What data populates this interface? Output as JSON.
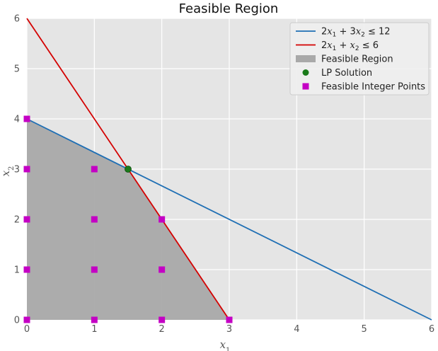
{
  "chart_data": {
    "type": "line",
    "title": "Feasible Region",
    "xlabel": "x",
    "xlabel_sub": "1",
    "ylabel": "x",
    "ylabel_sub": "2",
    "xlim": [
      0,
      6
    ],
    "ylim": [
      0,
      6
    ],
    "xticks": [
      0,
      1,
      2,
      3,
      4,
      5,
      6
    ],
    "yticks": [
      0,
      1,
      2,
      3,
      4,
      5,
      6
    ],
    "grid": true,
    "legend_position": "top-right",
    "series": [
      {
        "name": "2x1 + 3x2 ≤ 12",
        "legend_parts": [
          "2",
          "x",
          "1",
          " + 3",
          "x",
          "2",
          " ≤ 12"
        ],
        "type": "line",
        "color": "#1f6fb4",
        "x": [
          0,
          6
        ],
        "y": [
          4,
          0
        ]
      },
      {
        "name": "2x1 + x2 ≤ 6",
        "legend_parts": [
          "2",
          "x",
          "1",
          " + ",
          "x",
          "2",
          " ≤ 6"
        ],
        "type": "line",
        "color": "#d40000",
        "x": [
          0,
          3
        ],
        "y": [
          6,
          0
        ]
      },
      {
        "name": "Feasible Region",
        "type": "area",
        "color": "#a9a9a9",
        "polygon": [
          [
            0,
            0
          ],
          [
            3,
            0
          ],
          [
            1.5,
            3
          ],
          [
            0,
            4
          ]
        ]
      },
      {
        "name": "LP Solution",
        "type": "scatter",
        "color": "#1a7a1a",
        "points": [
          [
            1.5,
            3
          ]
        ]
      },
      {
        "name": "Feasible Integer Points",
        "type": "scatter",
        "color": "#c400c4",
        "points": [
          [
            0,
            0
          ],
          [
            0,
            1
          ],
          [
            0,
            2
          ],
          [
            0,
            3
          ],
          [
            0,
            4
          ],
          [
            1,
            0
          ],
          [
            1,
            1
          ],
          [
            1,
            2
          ],
          [
            1,
            3
          ],
          [
            2,
            0
          ],
          [
            2,
            1
          ],
          [
            2,
            2
          ],
          [
            3,
            0
          ]
        ]
      }
    ]
  }
}
